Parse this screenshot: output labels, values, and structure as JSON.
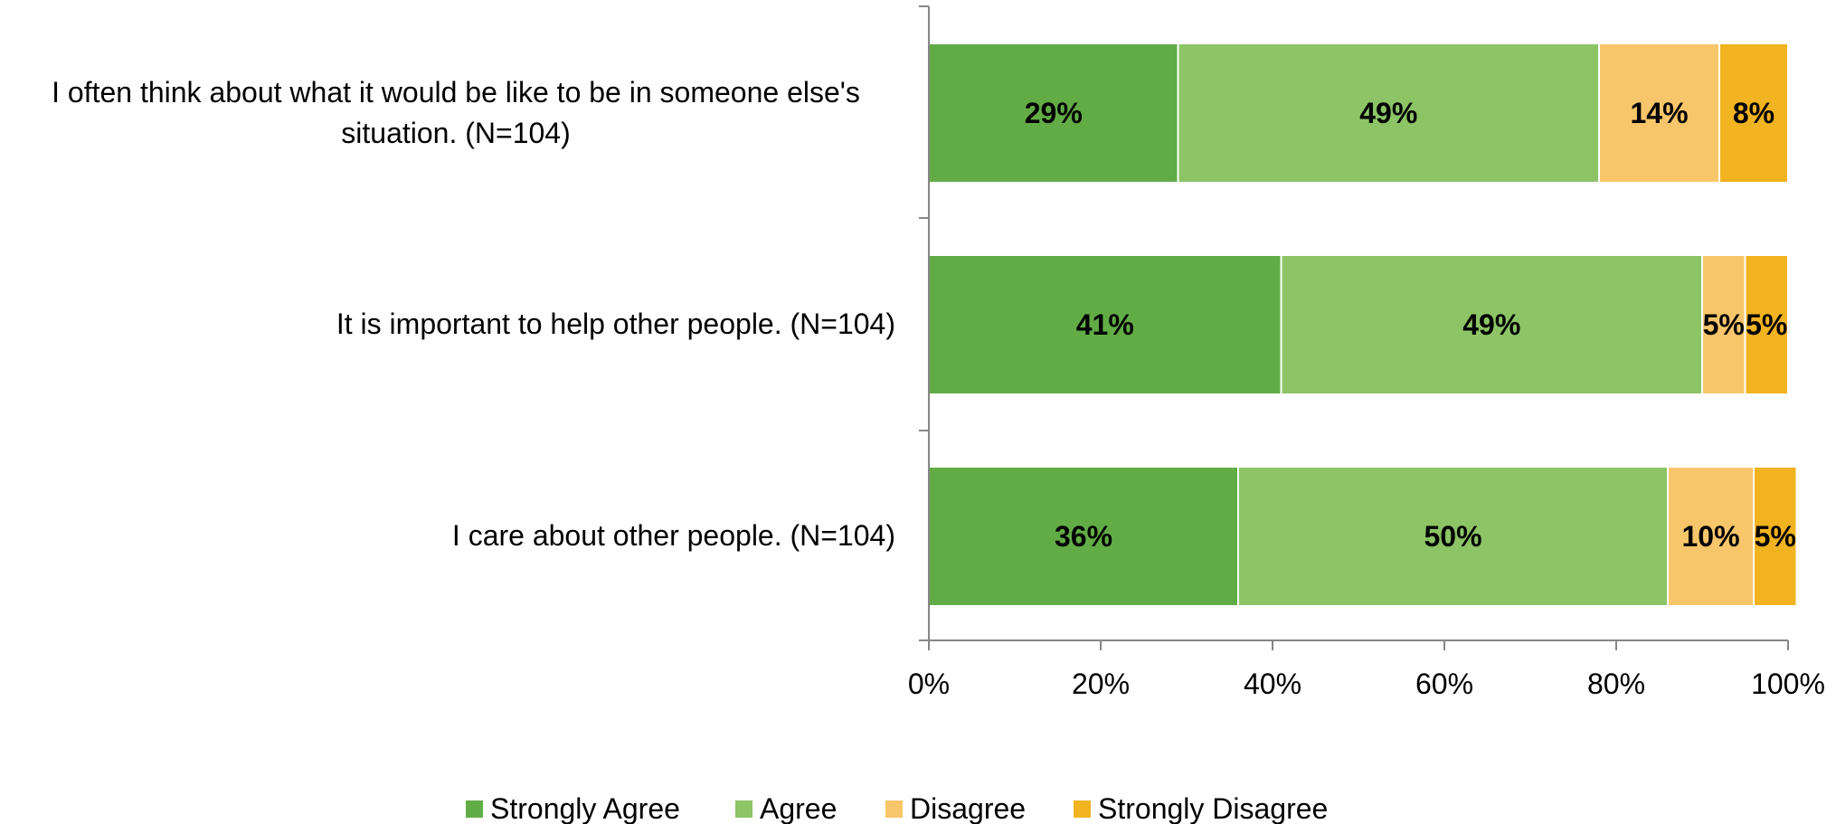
{
  "chart_data": {
    "type": "bar",
    "orientation": "horizontal",
    "stacked": true,
    "categories": [
      "I often think about what it would be like to be in someone else's situation. (N=104)",
      "It is important to help other people. (N=104)",
      "I care about other people. (N=104)"
    ],
    "series": [
      {
        "name": "Strongly Agree",
        "color": "#62AC46",
        "values": [
          29,
          41,
          36
        ],
        "labels": [
          "29%",
          "41%",
          "36%"
        ]
      },
      {
        "name": "Agree",
        "color": "#8CC466",
        "values": [
          49,
          49,
          50
        ],
        "labels": [
          "49%",
          "49%",
          "50%"
        ]
      },
      {
        "name": "Disagree",
        "color": "#F8C66A",
        "values": [
          14,
          5,
          10
        ],
        "labels": [
          "14%",
          "5%",
          "10%"
        ]
      },
      {
        "name": "Strongly Disagree",
        "color": "#F1B31F",
        "values": [
          8,
          5,
          5
        ],
        "labels": [
          "8%",
          "5%",
          "5%"
        ]
      }
    ],
    "xlim": [
      0,
      100
    ],
    "xticks": [
      "0%",
      "20%",
      "40%",
      "60%",
      "80%",
      "100%"
    ],
    "title": "",
    "xlabel": "",
    "ylabel": "",
    "grid": false,
    "legend": "bottom"
  }
}
